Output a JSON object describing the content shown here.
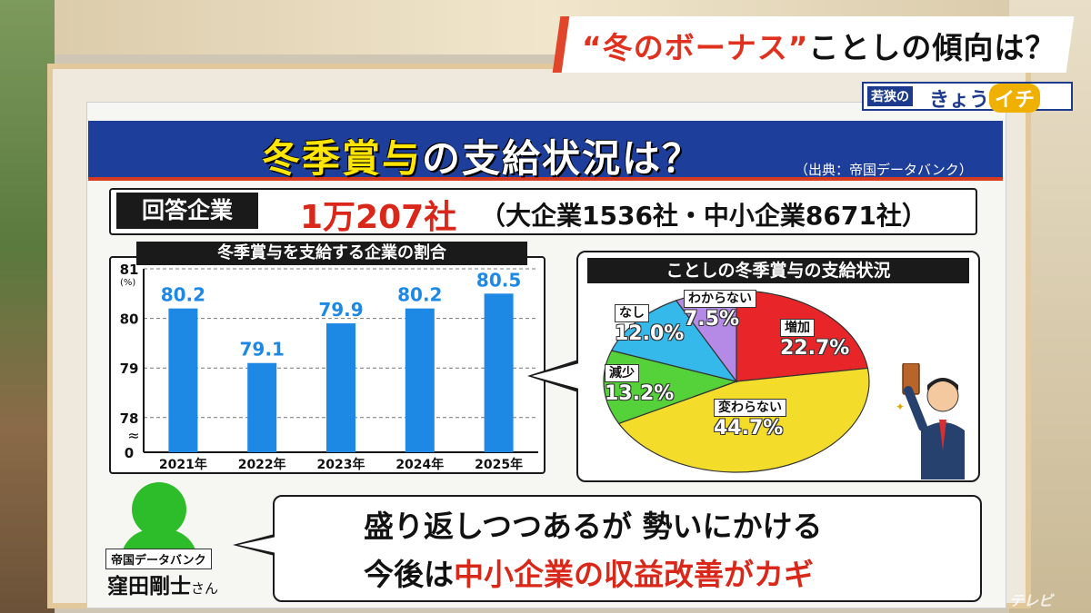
{
  "caption": {
    "quoted": "“冬のボーナス”",
    "rest": "ことしの傾向は？"
  },
  "logo": {
    "part_a": "若狭の",
    "part_b": "きょう",
    "part_c": "イチ"
  },
  "title": {
    "part_yellow": "冬季賞与",
    "part_white": "の支給状況は？",
    "source": "（出典：帝国データバンク）"
  },
  "respondents": {
    "label": "回答企業",
    "total": "1万207社",
    "breakdown": "（大企業1536社・中小企業8671社）"
  },
  "bar_title": "冬季賞与を支給する企業の割合",
  "pie_title": "ことしの冬季賞与の支給状況",
  "chart_data": [
    {
      "type": "bar",
      "title": "冬季賞与を支給する企業の割合",
      "categories": [
        "2021年",
        "2022年",
        "2023年",
        "2024年",
        "2025年"
      ],
      "values": [
        80.2,
        79.1,
        79.9,
        80.2,
        80.5
      ],
      "value_labels": [
        "80.2",
        "79.1",
        "79.9",
        "80.2",
        "80.5"
      ],
      "y_ticks": [
        "81",
        "80",
        "79",
        "78",
        "0"
      ],
      "y_unit": "(%)",
      "axis_break": "≈",
      "ylim": [
        77.3,
        81
      ],
      "color": "#1e88e5"
    },
    {
      "type": "pie",
      "title": "ことしの冬季賞与の支給状況",
      "slices": [
        {
          "name": "増加",
          "value": 22.7,
          "label": "22.7%",
          "color": "#e8262a"
        },
        {
          "name": "変わらない",
          "value": 44.7,
          "label": "44.7%",
          "color": "#f3dd2a"
        },
        {
          "name": "減少",
          "value": 13.2,
          "label": "13.2%",
          "color": "#55d13a"
        },
        {
          "name": "なし",
          "value": 12.0,
          "label": "12.0%",
          "color": "#35b8ea"
        },
        {
          "name": "わからない",
          "value": 7.5,
          "label": "7.5%",
          "color": "#b48ae6"
        }
      ]
    }
  ],
  "commenter": {
    "org": "帝国データバンク",
    "name": "窪田剛士",
    "honorific": "さん",
    "avatar_color": "#2dbd2a"
  },
  "comment": {
    "line1": "盛り返しつつあるが 勢いにかける",
    "line2_a": "今後は",
    "line2_b": "中小企業の収益改善がカギ"
  },
  "watermark": "テレビ"
}
